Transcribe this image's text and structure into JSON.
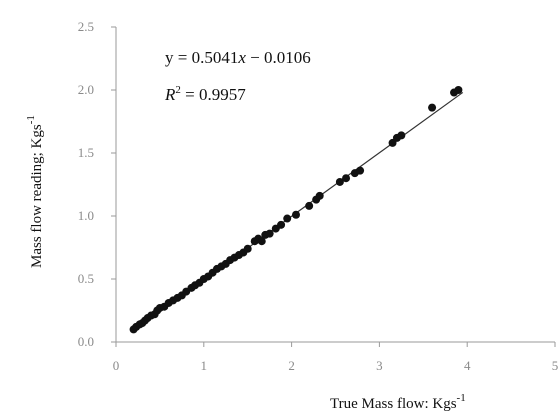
{
  "chart_data": {
    "type": "scatter",
    "title": "",
    "xlabel": "True Mass flow: Kgs",
    "xlabel_unit_exp": "-1",
    "ylabel": "Mass flow reading; Kgs",
    "ylabel_unit_exp": "-1",
    "xlim": [
      0,
      5
    ],
    "ylim": [
      0.0,
      2.5
    ],
    "xticks": [
      "0",
      "1",
      "2",
      "3",
      "4",
      "5"
    ],
    "yticks": [
      "0.0",
      "0.5",
      "1.0",
      "1.5",
      "2.0",
      "2.5"
    ],
    "grid": false,
    "legend": "none",
    "annotations": {
      "equation_prefix": "y = 0.5041",
      "equation_var": "x",
      "equation_suffix": " − 0.0106",
      "r2_var": "R",
      "r2_exp": "2",
      "r2_value": " = 0.9957"
    },
    "trendline": {
      "slope": 0.5041,
      "intercept": -0.0106,
      "x_range": [
        0.2,
        3.95
      ]
    },
    "colors": {
      "points": "#111111",
      "line": "#333333",
      "axis": "#9a9a9a"
    },
    "series": [
      {
        "x": [
          0.2,
          0.23,
          0.27,
          0.3,
          0.33,
          0.36,
          0.4,
          0.44,
          0.47,
          0.5,
          0.55,
          0.6,
          0.65,
          0.7,
          0.75,
          0.8,
          0.86,
          0.9,
          0.95,
          1.0,
          1.05,
          1.1,
          1.15,
          1.2,
          1.25,
          1.3,
          1.35,
          1.4,
          1.45,
          1.5,
          1.58,
          1.62,
          1.66,
          1.7,
          1.75,
          1.82,
          1.88,
          1.95,
          2.05,
          2.2,
          2.28,
          2.32,
          2.55,
          2.62,
          2.72,
          2.78,
          3.15,
          3.2,
          3.25,
          3.6,
          3.85,
          3.9
        ],
        "y": [
          0.1,
          0.12,
          0.14,
          0.15,
          0.17,
          0.19,
          0.21,
          0.22,
          0.25,
          0.27,
          0.28,
          0.31,
          0.33,
          0.35,
          0.37,
          0.4,
          0.43,
          0.45,
          0.47,
          0.5,
          0.52,
          0.55,
          0.58,
          0.6,
          0.62,
          0.65,
          0.67,
          0.69,
          0.71,
          0.74,
          0.8,
          0.82,
          0.8,
          0.85,
          0.86,
          0.9,
          0.93,
          0.98,
          1.01,
          1.08,
          1.13,
          1.16,
          1.27,
          1.3,
          1.34,
          1.36,
          1.58,
          1.62,
          1.64,
          1.86,
          1.98,
          2.0
        ]
      }
    ]
  }
}
